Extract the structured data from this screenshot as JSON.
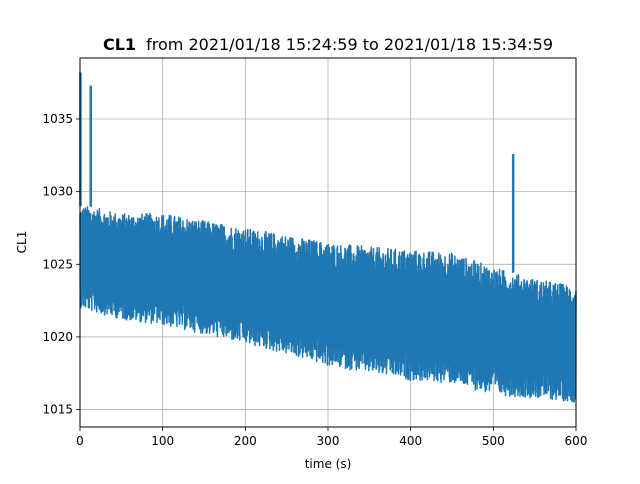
{
  "chart_data": {
    "type": "line",
    "title_bold": "CL1",
    "title_rest": "from 2021/01/18 15:24:59 to 2021/01/18 15:34:59",
    "xlabel": "time (s)",
    "ylabel": "CL1",
    "xlim": [
      0,
      600
    ],
    "ylim": [
      1013.8,
      1039.2
    ],
    "x_ticks": [
      0,
      100,
      200,
      300,
      400,
      500,
      600
    ],
    "x_tick_labels": [
      "0",
      "100",
      "200",
      "300",
      "400",
      "500",
      "600"
    ],
    "y_ticks": [
      1015,
      1020,
      1025,
      1030,
      1035
    ],
    "y_tick_labels": [
      "1015",
      "1020",
      "1025",
      "1030",
      "1035"
    ],
    "grid": true,
    "series": [
      {
        "color": "#1f77b4",
        "envelope": {
          "x": [
            0,
            10,
            50,
            100,
            150,
            200,
            250,
            300,
            350,
            400,
            450,
            500,
            550,
            600
          ],
          "upper": [
            1029.0,
            1029.0,
            1028.5,
            1028.5,
            1028.0,
            1027.5,
            1027.0,
            1026.5,
            1026.2,
            1026.0,
            1025.8,
            1024.8,
            1024.0,
            1023.5
          ],
          "lower": [
            1022.0,
            1021.8,
            1021.2,
            1020.8,
            1020.2,
            1019.5,
            1018.8,
            1018.0,
            1017.5,
            1017.0,
            1016.8,
            1016.0,
            1015.8,
            1015.5
          ]
        },
        "spikes": [
          {
            "x": 0.5,
            "y": 1038.2
          },
          {
            "x": 13,
            "y": 1037.3
          },
          {
            "x": 524,
            "y": 1032.6
          }
        ],
        "notes_style": "dense oscillating signal between envelope bounds"
      }
    ]
  }
}
